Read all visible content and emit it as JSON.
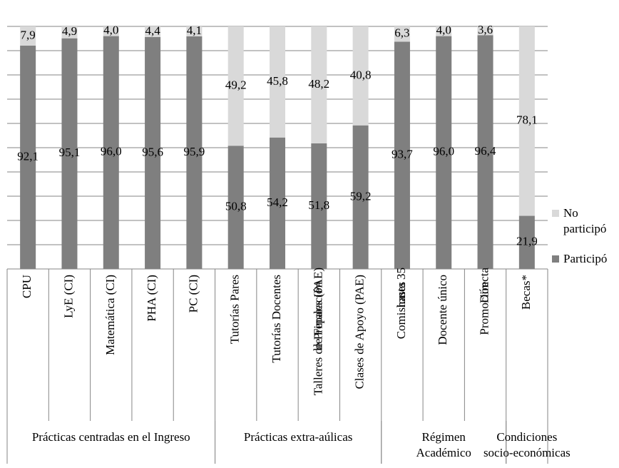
{
  "chart_data": {
    "type": "stacked-bar",
    "groups": [
      {
        "name": "Prácticas centradas en el Ingreso",
        "categories": [
          "CPU",
          "LyE (CI)",
          "Matemática (CI)",
          "PHA (CI)",
          "PC (CI)"
        ]
      },
      {
        "name": "Prácticas extra-aúlicas",
        "categories": [
          "Tutorías Pares",
          "Tutorías Docentes",
          "Talleres de Preparación\nde Finales (PAE)",
          "Clases de Apoyo (PAE)"
        ]
      },
      {
        "name": "Régimen\nAcadémico",
        "categories": [
          "Comisiones\nhasta 35",
          "Docente único",
          "Promoción\nDirecta"
        ]
      },
      {
        "name": "Condiciones\nsocio-económicas",
        "categories": [
          "Becas*"
        ]
      }
    ],
    "series": [
      {
        "name": "Participó",
        "color": "#7f7f7f",
        "values": [
          92.1,
          95.1,
          96.0,
          95.6,
          95.9,
          50.8,
          54.2,
          51.8,
          59.2,
          93.7,
          96.0,
          96.4,
          21.9
        ],
        "value_labels": [
          "92,1",
          "95,1",
          "96,0",
          "95,6",
          "95,9",
          "50,8",
          "54,2",
          "51,8",
          "59,2",
          "93,7",
          "96,0",
          "96,4",
          "21,9"
        ]
      },
      {
        "name": "No\nparticipó",
        "color": "#d9d9d9",
        "values": [
          7.9,
          4.9,
          4.0,
          4.4,
          4.1,
          49.2,
          45.8,
          48.2,
          40.8,
          6.3,
          4.0,
          3.6,
          78.1
        ],
        "value_labels": [
          "7,9",
          "4,9",
          "4,0",
          "4,4",
          "4,1",
          "49,2",
          "45,8",
          "48,2",
          "40,8",
          "6,3",
          "4,0",
          "3,6",
          "78,1"
        ]
      }
    ],
    "ylim": [
      0,
      100
    ],
    "yticks": [
      0,
      10,
      20,
      30,
      40,
      50,
      60,
      70,
      80,
      90,
      100
    ],
    "ytick_labels": false,
    "grid": true
  }
}
